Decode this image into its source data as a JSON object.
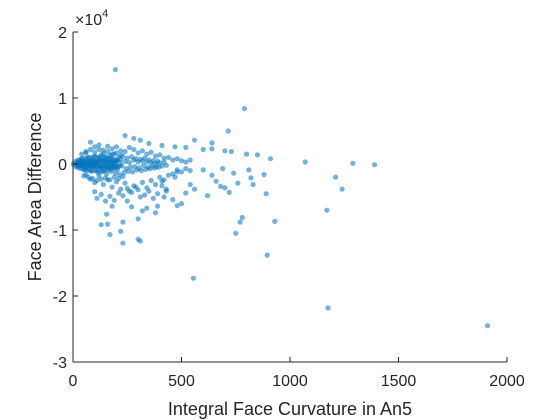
{
  "chart_data": {
    "type": "scatter",
    "xlabel": "Integral Face Curvature in An5",
    "ylabel": "Face Area Difference",
    "xlim": [
      0,
      2000
    ],
    "ylim": [
      -30000,
      20000
    ],
    "x_ticks": [
      0,
      500,
      1000,
      1500,
      2000
    ],
    "y_ticks": [
      -3,
      -2,
      -1,
      0,
      1,
      2
    ],
    "y_exponent_base": "×10",
    "y_exponent_power": "4",
    "marker_color": "#0072BD",
    "grid": false,
    "series": [
      {
        "points": [
          [
            195,
            14300
          ],
          [
            790,
            8400
          ],
          [
            715,
            5000
          ],
          [
            640,
            3200
          ],
          [
            560,
            3600
          ],
          [
            1070,
            300
          ],
          [
            1290,
            100
          ],
          [
            1390,
            -100
          ],
          [
            1210,
            -2000
          ],
          [
            1240,
            -3800
          ],
          [
            1170,
            -7000
          ],
          [
            930,
            -8700
          ],
          [
            780,
            -8100
          ],
          [
            770,
            -8800
          ],
          [
            750,
            -10500
          ],
          [
            555,
            -17300
          ],
          [
            895,
            -13800
          ],
          [
            1175,
            -21800
          ],
          [
            1910,
            -24500
          ],
          [
            240,
            4300
          ],
          [
            280,
            3900
          ],
          [
            310,
            3600
          ],
          [
            350,
            3100
          ],
          [
            410,
            2800
          ],
          [
            470,
            2600
          ],
          [
            520,
            2500
          ],
          [
            600,
            2200
          ],
          [
            640,
            2300
          ],
          [
            700,
            2000
          ],
          [
            730,
            1900
          ],
          [
            800,
            1500
          ],
          [
            850,
            1400
          ],
          [
            910,
            800
          ],
          [
            640,
            -1700
          ],
          [
            660,
            -2600
          ],
          [
            700,
            -3600
          ],
          [
            720,
            -4300
          ],
          [
            830,
            -3100
          ],
          [
            880,
            -1600
          ],
          [
            890,
            -4500
          ],
          [
            620,
            -4800
          ],
          [
            560,
            -3800
          ],
          [
            520,
            -4400
          ],
          [
            500,
            -6000
          ],
          [
            480,
            -6300
          ],
          [
            460,
            -5400
          ],
          [
            390,
            -6400
          ],
          [
            380,
            -7400
          ],
          [
            340,
            -6700
          ],
          [
            320,
            -7100
          ],
          [
            300,
            -8300
          ],
          [
            270,
            -6500
          ],
          [
            230,
            -8800
          ],
          [
            220,
            -10200
          ],
          [
            170,
            -10700
          ],
          [
            160,
            -9100
          ],
          [
            130,
            -9200
          ],
          [
            300,
            -11400
          ],
          [
            310,
            -11700
          ],
          [
            230,
            -12000
          ],
          [
            155,
            -7600
          ],
          [
            180,
            -6400
          ],
          [
            250,
            -5600
          ],
          [
            420,
            -5000
          ],
          [
            430,
            -3800
          ],
          [
            540,
            -3100
          ],
          [
            600,
            -900
          ],
          [
            690,
            -700
          ],
          [
            740,
            -1400
          ],
          [
            810,
            -900
          ],
          [
            820,
            -2100
          ],
          [
            760,
            -2900
          ],
          [
            680,
            -3400
          ],
          [
            480,
            -1200
          ],
          [
            470,
            -2000
          ],
          [
            410,
            -2600
          ],
          [
            60,
            1700
          ],
          [
            80,
            3300
          ],
          [
            100,
            2600
          ],
          [
            120,
            2900
          ],
          [
            140,
            2100
          ],
          [
            160,
            2700
          ],
          [
            180,
            2300
          ],
          [
            200,
            2600
          ],
          [
            220,
            2000
          ],
          [
            240,
            1900
          ],
          [
            260,
            2500
          ],
          [
            280,
            2200
          ],
          [
            300,
            1700
          ],
          [
            320,
            2000
          ],
          [
            340,
            1500
          ],
          [
            360,
            1800
          ],
          [
            380,
            1200
          ],
          [
            400,
            1400
          ],
          [
            420,
            900
          ],
          [
            440,
            1000
          ],
          [
            460,
            600
          ],
          [
            480,
            800
          ],
          [
            500,
            500
          ],
          [
            520,
            300
          ],
          [
            540,
            600
          ],
          [
            60,
            -1600
          ],
          [
            80,
            -2300
          ],
          [
            100,
            -2800
          ],
          [
            120,
            -1800
          ],
          [
            140,
            -3100
          ],
          [
            160,
            -2400
          ],
          [
            180,
            -3500
          ],
          [
            200,
            -2700
          ],
          [
            220,
            -3800
          ],
          [
            240,
            -2900
          ],
          [
            260,
            -4100
          ],
          [
            280,
            -3300
          ],
          [
            300,
            -3900
          ],
          [
            320,
            -2800
          ],
          [
            340,
            -3600
          ],
          [
            360,
            -2500
          ],
          [
            380,
            -3100
          ],
          [
            400,
            -2000
          ],
          [
            420,
            -2400
          ],
          [
            440,
            -1700
          ],
          [
            460,
            -1500
          ],
          [
            480,
            -900
          ],
          [
            500,
            -1200
          ],
          [
            520,
            -700
          ],
          [
            540,
            -1000
          ],
          [
            100,
            -4200
          ],
          [
            110,
            -5200
          ],
          [
            130,
            -4600
          ],
          [
            150,
            -5600
          ],
          [
            170,
            -4900
          ],
          [
            190,
            -5500
          ],
          [
            210,
            -4400
          ],
          [
            230,
            -4800
          ],
          [
            250,
            -3700
          ],
          [
            270,
            -4300
          ],
          [
            290,
            -3500
          ],
          [
            310,
            -5000
          ],
          [
            330,
            -4700
          ],
          [
            350,
            -4100
          ],
          [
            370,
            -5200
          ],
          [
            390,
            -4500
          ],
          [
            410,
            -3300
          ],
          [
            430,
            -4100
          ],
          [
            20,
            200
          ],
          [
            25,
            -300
          ],
          [
            30,
            500
          ],
          [
            35,
            -100
          ],
          [
            40,
            800
          ],
          [
            45,
            -600
          ],
          [
            50,
            300
          ],
          [
            55,
            -900
          ],
          [
            60,
            600
          ],
          [
            65,
            -400
          ],
          [
            70,
            1000
          ],
          [
            75,
            -800
          ],
          [
            80,
            200
          ],
          [
            85,
            -1100
          ],
          [
            90,
            700
          ],
          [
            95,
            -300
          ],
          [
            100,
            1200
          ],
          [
            105,
            -900
          ],
          [
            110,
            400
          ],
          [
            115,
            -1300
          ],
          [
            120,
            900
          ],
          [
            125,
            -500
          ],
          [
            130,
            1400
          ],
          [
            135,
            -1200
          ],
          [
            140,
            600
          ],
          [
            145,
            -800
          ],
          [
            150,
            1100
          ],
          [
            155,
            -1500
          ],
          [
            160,
            300
          ],
          [
            165,
            -600
          ],
          [
            170,
            1300
          ],
          [
            175,
            -1100
          ],
          [
            180,
            800
          ],
          [
            185,
            -400
          ],
          [
            190,
            1500
          ],
          [
            195,
            -1400
          ],
          [
            200,
            500
          ],
          [
            205,
            -900
          ],
          [
            210,
            1000
          ],
          [
            215,
            -1600
          ],
          [
            220,
            700
          ],
          [
            225,
            -300
          ],
          [
            230,
            1200
          ],
          [
            235,
            -1300
          ],
          [
            240,
            400
          ],
          [
            245,
            -700
          ],
          [
            250,
            900
          ],
          [
            255,
            -1100
          ],
          [
            260,
            200
          ],
          [
            265,
            -500
          ],
          [
            270,
            1100
          ],
          [
            275,
            -1200
          ],
          [
            280,
            600
          ],
          [
            285,
            -400
          ],
          [
            290,
            800
          ],
          [
            295,
            -900
          ],
          [
            300,
            300
          ],
          [
            305,
            -600
          ],
          [
            310,
            700
          ],
          [
            315,
            -1000
          ],
          [
            320,
            500
          ],
          [
            325,
            -200
          ],
          [
            330,
            900
          ],
          [
            335,
            -800
          ],
          [
            340,
            300
          ],
          [
            345,
            -500
          ],
          [
            350,
            600
          ],
          [
            355,
            -700
          ],
          [
            360,
            200
          ],
          [
            365,
            -300
          ],
          [
            370,
            500
          ],
          [
            375,
            -600
          ],
          [
            380,
            100
          ],
          [
            385,
            -400
          ],
          [
            390,
            400
          ],
          [
            395,
            -500
          ],
          [
            400,
            200
          ],
          [
            410,
            -300
          ],
          [
            420,
            300
          ],
          [
            430,
            -200
          ],
          [
            40,
            1500
          ],
          [
            50,
            -1800
          ],
          [
            60,
            1900
          ],
          [
            70,
            -2000
          ],
          [
            80,
            2200
          ],
          [
            90,
            -2200
          ],
          [
            100,
            1800
          ],
          [
            110,
            -2500
          ],
          [
            120,
            2200
          ],
          [
            130,
            -2300
          ],
          [
            140,
            1600
          ],
          [
            150,
            -2100
          ],
          [
            160,
            1900
          ],
          [
            170,
            -2400
          ],
          [
            180,
            1500
          ],
          [
            190,
            -2000
          ],
          [
            200,
            1700
          ],
          [
            210,
            -2200
          ],
          [
            220,
            1300
          ],
          [
            230,
            -1900
          ],
          [
            15,
            100
          ],
          [
            18,
            -200
          ],
          [
            22,
            300
          ],
          [
            28,
            -400
          ],
          [
            33,
            100
          ],
          [
            38,
            -200
          ],
          [
            42,
            400
          ],
          [
            48,
            -300
          ],
          [
            52,
            200
          ],
          [
            58,
            -500
          ],
          [
            62,
            100
          ],
          [
            68,
            -100
          ],
          [
            72,
            300
          ],
          [
            78,
            -200
          ],
          [
            82,
            500
          ],
          [
            88,
            -400
          ],
          [
            92,
            200
          ],
          [
            98,
            -100
          ],
          [
            102,
            400
          ],
          [
            108,
            -300
          ],
          [
            112,
            100
          ],
          [
            118,
            -200
          ],
          [
            122,
            600
          ],
          [
            128,
            -500
          ],
          [
            132,
            200
          ],
          [
            138,
            -300
          ],
          [
            142,
            500
          ],
          [
            148,
            -400
          ],
          [
            152,
            100
          ],
          [
            158,
            -200
          ],
          [
            162,
            700
          ],
          [
            168,
            -600
          ],
          [
            172,
            300
          ],
          [
            178,
            -100
          ],
          [
            182,
            400
          ],
          [
            188,
            -500
          ],
          [
            192,
            200
          ],
          [
            198,
            -300
          ],
          [
            202,
            600
          ],
          [
            208,
            -400
          ]
        ]
      }
    ]
  }
}
